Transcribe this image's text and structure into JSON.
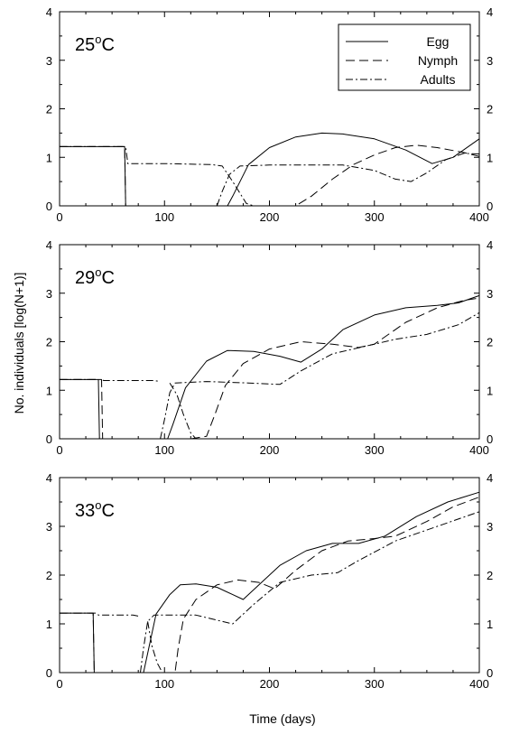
{
  "figure": {
    "ylabel": "No. individuals [log(N+1)]",
    "xlabel": "Time (days)"
  },
  "legend": [
    {
      "label": "Egg",
      "dash": "solid",
      "color": "#000000"
    },
    {
      "label": "Nymph",
      "dash": "dash",
      "color": "#000000"
    },
    {
      "label": "Adults",
      "dash": "dashdot",
      "color": "#000000"
    }
  ],
  "chart_data": [
    {
      "type": "line",
      "title": "25oC",
      "title_main": "25",
      "title_sup": "o",
      "title_tail": "C",
      "xlim": [
        0,
        400
      ],
      "ylim": [
        0,
        4
      ],
      "xticks": [
        "0",
        "100",
        "200",
        "300",
        "400"
      ],
      "yticks": [
        "0",
        "1",
        "2",
        "3",
        "4"
      ],
      "series": [
        {
          "name": "Egg",
          "dash": "solid",
          "points": [
            [
              0,
              1.22
            ],
            [
              62,
              1.22
            ],
            [
              63,
              0
            ],
            [
              160,
              0
            ],
            [
              165,
              0.2
            ],
            [
              180,
              0.85
            ],
            [
              200,
              1.2
            ],
            [
              225,
              1.42
            ],
            [
              250,
              1.5
            ],
            [
              270,
              1.48
            ],
            [
              300,
              1.38
            ],
            [
              330,
              1.15
            ],
            [
              355,
              0.87
            ],
            [
              375,
              1.0
            ],
            [
              400,
              1.38
            ]
          ]
        },
        {
          "name": "Nymph",
          "dash": "dash",
          "points": [
            [
              0,
              1.22
            ],
            [
              62,
              1.22
            ],
            [
              63,
              0
            ],
            [
              225,
              0
            ],
            [
              240,
              0.2
            ],
            [
              260,
              0.55
            ],
            [
              280,
              0.85
            ],
            [
              300,
              1.05
            ],
            [
              320,
              1.2
            ],
            [
              340,
              1.25
            ],
            [
              360,
              1.2
            ],
            [
              385,
              1.1
            ],
            [
              400,
              1.02
            ]
          ]
        },
        {
          "name": "Adults",
          "dash": "dashdot",
          "points": [
            [
              0,
              1.22
            ],
            [
              63,
              1.22
            ],
            [
              65,
              0.87
            ],
            [
              100,
              0.87
            ],
            [
              145,
              0.85
            ],
            [
              155,
              0.82
            ],
            [
              165,
              0.5
            ],
            [
              178,
              0.05
            ],
            [
              185,
              0
            ],
            [
              190,
              0
            ]
          ]
        },
        {
          "name": "Adults",
          "dash": "dashdot",
          "points": [
            [
              150,
              0
            ],
            [
              155,
              0.3
            ],
            [
              162,
              0.65
            ],
            [
              172,
              0.82
            ],
            [
              200,
              0.84
            ],
            [
              270,
              0.84
            ],
            [
              300,
              0.73
            ],
            [
              320,
              0.55
            ],
            [
              335,
              0.5
            ],
            [
              350,
              0.68
            ],
            [
              368,
              0.95
            ],
            [
              385,
              1.08
            ],
            [
              400,
              1.07
            ]
          ]
        }
      ]
    },
    {
      "type": "line",
      "title": "29oC",
      "title_main": "29",
      "title_sup": "o",
      "title_tail": "C",
      "xlim": [
        0,
        400
      ],
      "ylim": [
        0,
        4
      ],
      "xticks": [
        "0",
        "100",
        "200",
        "300",
        "400"
      ],
      "yticks": [
        "0",
        "1",
        "2",
        "3",
        "4"
      ],
      "series": [
        {
          "name": "Egg",
          "dash": "solid",
          "points": [
            [
              0,
              1.22
            ],
            [
              37,
              1.22
            ],
            [
              38,
              0
            ],
            [
              103,
              0
            ],
            [
              108,
              0.3
            ],
            [
              120,
              1.05
            ],
            [
              140,
              1.6
            ],
            [
              160,
              1.82
            ],
            [
              185,
              1.8
            ],
            [
              210,
              1.7
            ],
            [
              230,
              1.58
            ],
            [
              250,
              1.85
            ],
            [
              270,
              2.25
            ],
            [
              300,
              2.55
            ],
            [
              330,
              2.7
            ],
            [
              360,
              2.75
            ],
            [
              380,
              2.8
            ],
            [
              400,
              2.95
            ]
          ]
        },
        {
          "name": "Nymph",
          "dash": "dash",
          "points": [
            [
              0,
              1.22
            ],
            [
              40,
              1.22
            ],
            [
              41,
              0
            ],
            [
              125,
              0
            ],
            [
              140,
              0.05
            ],
            [
              148,
              0.5
            ],
            [
              158,
              1.1
            ],
            [
              175,
              1.55
            ],
            [
              200,
              1.85
            ],
            [
              230,
              2.0
            ],
            [
              260,
              1.95
            ],
            [
              285,
              1.88
            ],
            [
              300,
              1.95
            ],
            [
              330,
              2.4
            ],
            [
              360,
              2.7
            ],
            [
              385,
              2.85
            ],
            [
              400,
              2.9
            ]
          ]
        },
        {
          "name": "Adults",
          "dash": "dashdot",
          "points": [
            [
              0,
              1.22
            ],
            [
              40,
              1.22
            ],
            [
              42,
              1.2
            ],
            [
              90,
              1.2
            ],
            [
              96,
              1.18
            ]
          ]
        },
        {
          "name": "Adults",
          "dash": "dashdot",
          "points": [
            [
              96,
              0
            ],
            [
              100,
              0.4
            ],
            [
              105,
              0.95
            ],
            [
              110,
              1.15
            ],
            [
              140,
              1.18
            ],
            [
              180,
              1.15
            ],
            [
              210,
              1.12
            ],
            [
              230,
              1.4
            ],
            [
              260,
              1.75
            ],
            [
              290,
              1.9
            ],
            [
              320,
              2.05
            ],
            [
              350,
              2.15
            ],
            [
              380,
              2.35
            ],
            [
              400,
              2.6
            ]
          ]
        },
        {
          "name": "Adults",
          "dash": "dashdot",
          "points": [
            [
              105,
              1.15
            ],
            [
              112,
              0.9
            ],
            [
              118,
              0.5
            ],
            [
              125,
              0.12
            ],
            [
              130,
              0
            ]
          ]
        }
      ]
    },
    {
      "type": "line",
      "title": "33oC",
      "title_main": "33",
      "title_sup": "o",
      "title_tail": "C",
      "xlim": [
        0,
        400
      ],
      "ylim": [
        0,
        4
      ],
      "xticks": [
        "0",
        "100",
        "200",
        "300",
        "400"
      ],
      "yticks": [
        "0",
        "1",
        "2",
        "3",
        "4"
      ],
      "series": [
        {
          "name": "Egg",
          "dash": "solid",
          "points": [
            [
              0,
              1.22
            ],
            [
              32,
              1.22
            ],
            [
              33,
              0
            ],
            [
              80,
              0
            ],
            [
              85,
              0.5
            ],
            [
              92,
              1.2
            ],
            [
              105,
              1.6
            ],
            [
              115,
              1.8
            ],
            [
              130,
              1.82
            ],
            [
              150,
              1.75
            ],
            [
              165,
              1.6
            ],
            [
              175,
              1.5
            ],
            [
              190,
              1.8
            ],
            [
              210,
              2.2
            ],
            [
              235,
              2.5
            ],
            [
              260,
              2.65
            ],
            [
              285,
              2.65
            ],
            [
              310,
              2.8
            ],
            [
              340,
              3.2
            ],
            [
              370,
              3.5
            ],
            [
              400,
              3.7
            ]
          ]
        },
        {
          "name": "Nymph",
          "dash": "dash",
          "points": [
            [
              0,
              1.22
            ],
            [
              32,
              1.22
            ],
            [
              33,
              0
            ],
            [
              110,
              0
            ],
            [
              113,
              0.5
            ],
            [
              118,
              1.1
            ],
            [
              130,
              1.5
            ],
            [
              150,
              1.8
            ],
            [
              170,
              1.9
            ],
            [
              190,
              1.85
            ],
            [
              205,
              1.72
            ],
            [
              225,
              2.1
            ],
            [
              250,
              2.5
            ],
            [
              275,
              2.7
            ],
            [
              300,
              2.75
            ],
            [
              320,
              2.8
            ],
            [
              350,
              3.1
            ],
            [
              375,
              3.4
            ],
            [
              400,
              3.6
            ]
          ]
        },
        {
          "name": "Adults",
          "dash": "dashdot",
          "points": [
            [
              0,
              1.22
            ],
            [
              35,
              1.22
            ],
            [
              37,
              1.18
            ],
            [
              70,
              1.18
            ],
            [
              77,
              1.15
            ]
          ]
        },
        {
          "name": "Adults",
          "dash": "dashdot",
          "points": [
            [
              77,
              0
            ],
            [
              80,
              0.5
            ],
            [
              84,
              1.05
            ],
            [
              90,
              1.18
            ],
            [
              130,
              1.18
            ],
            [
              155,
              1.05
            ],
            [
              165,
              1.0
            ],
            [
              185,
              1.4
            ],
            [
              210,
              1.85
            ],
            [
              240,
              2.0
            ],
            [
              265,
              2.05
            ],
            [
              285,
              2.3
            ],
            [
              320,
              2.7
            ],
            [
              360,
              3.0
            ],
            [
              400,
              3.3
            ]
          ]
        },
        {
          "name": "Adults",
          "dash": "dashdot",
          "points": [
            [
              84,
              1.05
            ],
            [
              88,
              0.55
            ],
            [
              93,
              0.2
            ],
            [
              98,
              0
            ],
            [
              105,
              0
            ]
          ]
        }
      ]
    }
  ]
}
